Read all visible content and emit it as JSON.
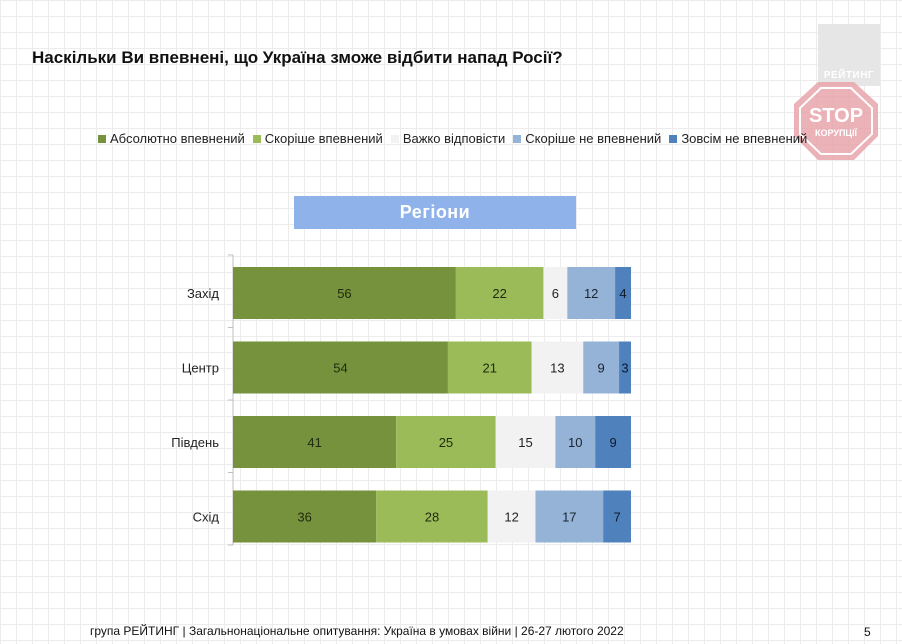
{
  "title": "Наскільки Ви впевнені, що Україна зможе відбити напад Росії?",
  "logo": {
    "text": "РЕЙТИНГ"
  },
  "stamp": {
    "line1": "STOP",
    "line2": "КОРУПЦІЇ"
  },
  "section_title": "Регіони",
  "footer": "група РЕЙТИНГ | Загальнонаціональне опитування: Україна в умовах війни | 26-27 лютого 2022",
  "page_number": "5",
  "chart_data": {
    "type": "bar",
    "orientation": "horizontal",
    "stacked": true,
    "normalized_total": 100,
    "title": "",
    "categories": [
      "Захід",
      "Центр",
      "Південь",
      "Схід"
    ],
    "series": [
      {
        "name": "Абсолютно впевнений",
        "color": "#76923c",
        "text_color": "#1f2a0e",
        "values": [
          56,
          54,
          41,
          36
        ]
      },
      {
        "name": "Скоріше впевнений",
        "color": "#9bbb59",
        "text_color": "#1f2a0e",
        "values": [
          22,
          21,
          25,
          28
        ]
      },
      {
        "name": "Важко відповісти",
        "color": "#f2f2f2",
        "text_color": "#222222",
        "values": [
          6,
          13,
          15,
          12
        ]
      },
      {
        "name": "Скоріше не впевнений",
        "color": "#95b3d7",
        "text_color": "#1a2430",
        "values": [
          12,
          9,
          10,
          17
        ]
      },
      {
        "name": "Зовсім не впевнений",
        "color": "#4f81bd",
        "text_color": "#0d1a2b",
        "values": [
          4,
          3,
          9,
          7
        ]
      }
    ],
    "legend": "top",
    "grid": false
  }
}
